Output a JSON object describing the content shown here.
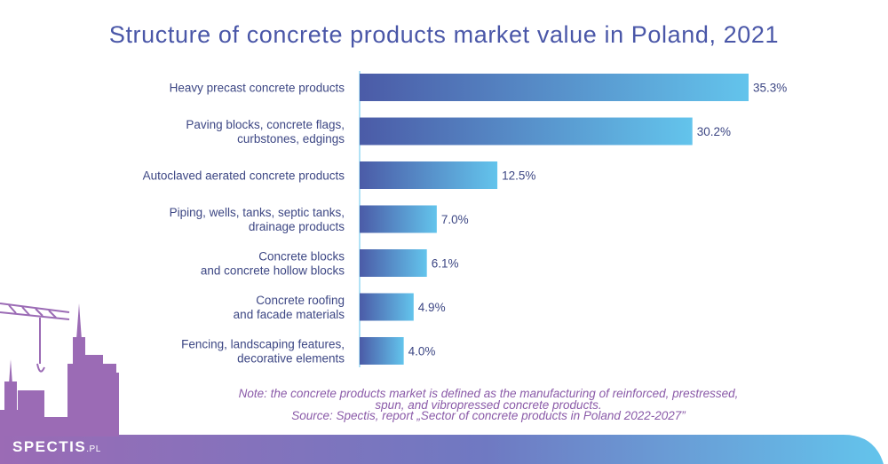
{
  "brand": {
    "name": "SPECTIS",
    "suffix": ".PL"
  },
  "note_line1": "Note: the concrete products market is defined as the manufacturing of reinforced, prestressed,",
  "note_line2": "spun, and vibropressed concrete products.",
  "source": "Source: Spectis, report „Sector of concrete products in Poland 2022-2027”",
  "colors": {
    "bar_start": "#4b5ba7",
    "bar_end": "#63c4ec",
    "text": "#3d4784",
    "title": "#4a57a8",
    "note": "#8a5aa8",
    "skyline": "#9b6bb5"
  },
  "chart_data": {
    "type": "bar",
    "orientation": "horizontal",
    "title": "Structure of concrete products market value in Poland, 2021",
    "categories": [
      [
        "Heavy precast concrete products"
      ],
      [
        "Paving blocks, concrete flags,",
        "curbstones, edgings"
      ],
      [
        "Autoclaved aerated concrete products"
      ],
      [
        "Piping, wells, tanks, septic tanks,",
        "drainage products"
      ],
      [
        "Concrete blocks",
        "and concrete hollow blocks"
      ],
      [
        "Concrete roofing",
        "and facade materials"
      ],
      [
        "Fencing, landscaping features,",
        "decorative elements"
      ]
    ],
    "values": [
      35.3,
      30.2,
      12.5,
      7.0,
      6.1,
      4.9,
      4.0
    ],
    "value_labels": [
      "35.3%",
      "30.2%",
      "12.5%",
      "7.0%",
      "6.1%",
      "4.9%",
      "4.0%"
    ],
    "unit": "%",
    "grid": false
  }
}
